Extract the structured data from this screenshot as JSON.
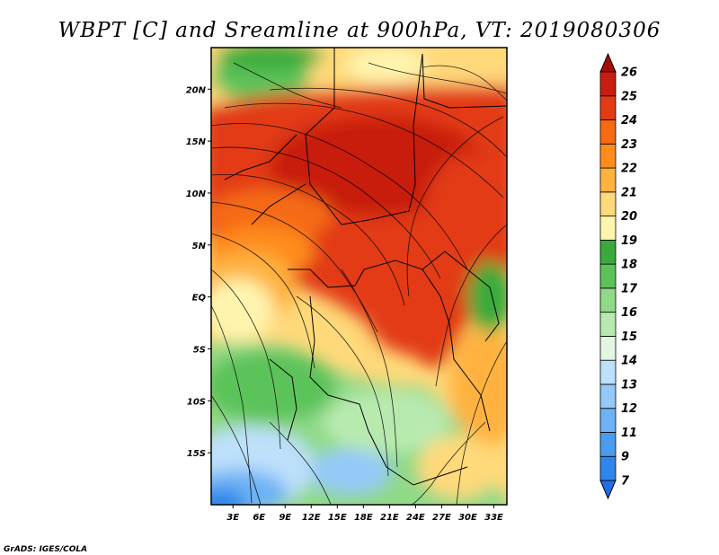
{
  "chart_data": {
    "type": "heatmap",
    "title": "WBPT [C] and Sreamline at 900hPa, VT: 2019080306",
    "variable": "Wet-bulb potential temperature",
    "units": "C",
    "level": "900hPa",
    "valid_time": "2019080306",
    "overlay": "streamlines",
    "x_ticks": [
      "3E",
      "6E",
      "9E",
      "12E",
      "15E",
      "18E",
      "21E",
      "24E",
      "27E",
      "30E",
      "33E"
    ],
    "x_values": [
      3,
      6,
      9,
      12,
      15,
      18,
      21,
      24,
      27,
      30,
      33
    ],
    "y_ticks": [
      "20N",
      "15N",
      "10N",
      "5N",
      "EQ",
      "5S",
      "10S",
      "15S"
    ],
    "y_values": [
      20,
      15,
      10,
      5,
      0,
      -5,
      -10,
      -15
    ],
    "xlim": [
      0.5,
      34.5
    ],
    "ylim": [
      -20,
      24
    ],
    "colorbar": {
      "labels": [
        "7",
        "9",
        "11",
        "12",
        "13",
        "14",
        "15",
        "16",
        "17",
        "18",
        "19",
        "20",
        "21",
        "22",
        "23",
        "24",
        "25",
        "26"
      ],
      "colors": [
        "#1e6ee6",
        "#2f86ea",
        "#4a9cf0",
        "#6db2f4",
        "#94c9f8",
        "#bde0fb",
        "#e2f6e2",
        "#b8eab0",
        "#8fd987",
        "#5cc25a",
        "#3aab3a",
        "#fff4ae",
        "#ffd97a",
        "#ffb240",
        "#ff8c1a",
        "#f56a12",
        "#e23a12",
        "#c81e10",
        "#a80c08"
      ]
    }
  },
  "credit": "GrADS: IGES/COLA"
}
